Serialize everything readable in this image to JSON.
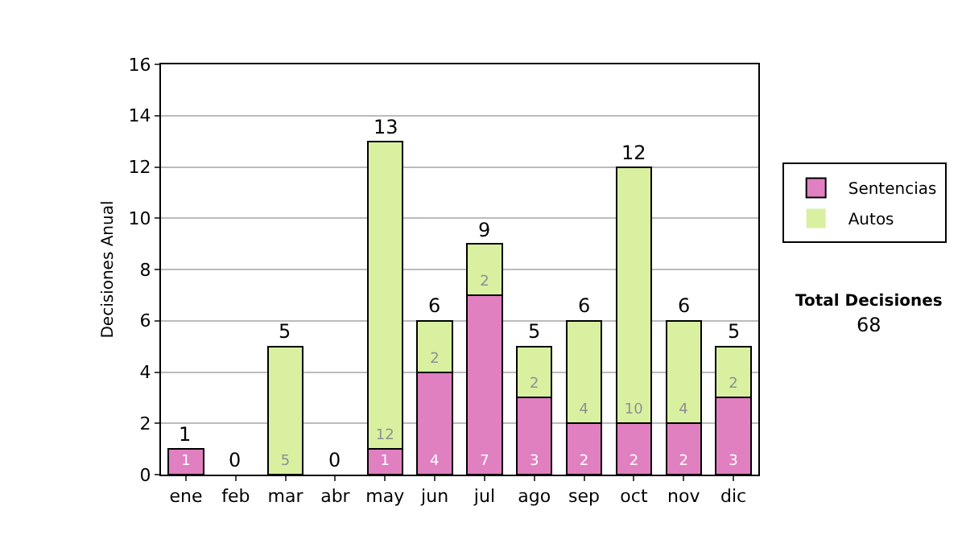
{
  "chart_data": {
    "type": "bar",
    "stacked": true,
    "ylabel": "Decisiones Anual",
    "categories": [
      "ene",
      "feb",
      "mar",
      "abr",
      "may",
      "jun",
      "jul",
      "ago",
      "sep",
      "oct",
      "nov",
      "dic"
    ],
    "series": [
      {
        "name": "Sentencias",
        "color": "#e080c0",
        "values": [
          1,
          0,
          0,
          0,
          1,
          4,
          7,
          3,
          2,
          2,
          2,
          3
        ],
        "value_labels": [
          "1",
          null,
          null,
          null,
          "1",
          "4",
          "7",
          "3",
          "2",
          "2",
          "2",
          "3"
        ]
      },
      {
        "name": "Autos",
        "color": "#d8f0a0",
        "values": [
          0,
          0,
          5,
          0,
          12,
          2,
          2,
          2,
          4,
          10,
          4,
          2
        ],
        "value_labels": [
          null,
          null,
          "5",
          null,
          "12",
          "2",
          "2",
          "2",
          "4",
          "10",
          "4",
          "2"
        ]
      }
    ],
    "totals": [
      "1",
      "0",
      "5",
      "0",
      "13",
      "6",
      "9",
      "5",
      "6",
      "12",
      "6",
      "5"
    ],
    "ylim": [
      0,
      16
    ],
    "yticks": [
      0,
      2,
      4,
      6,
      8,
      10,
      12,
      14,
      16
    ],
    "grid": "y",
    "legend": "right",
    "annotations": [
      "Total Decisiones",
      "68"
    ]
  }
}
